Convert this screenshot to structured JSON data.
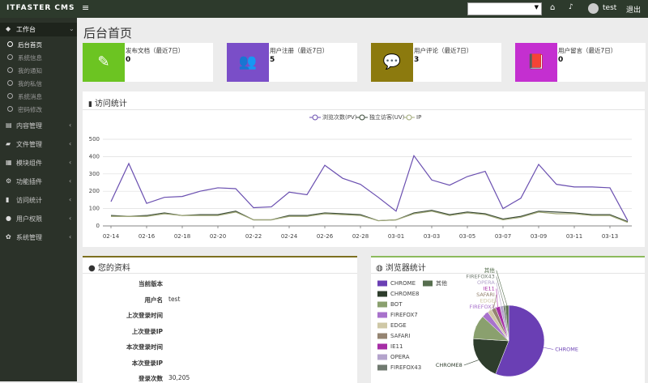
{
  "header": {
    "logo": "ITFASTER CMS",
    "user": "test",
    "logout": "退出"
  },
  "sidebar": {
    "items": [
      {
        "label": "工作台",
        "children": [
          "后台首页",
          "系统信息",
          "我的通知",
          "我的私信",
          "系统消息",
          "密码修改"
        ]
      },
      {
        "label": "内容管理"
      },
      {
        "label": "文件管理"
      },
      {
        "label": "模块组件"
      },
      {
        "label": "功能插件"
      },
      {
        "label": "访问统计"
      },
      {
        "label": "用户权限"
      },
      {
        "label": "系统管理"
      }
    ]
  },
  "page_title": "后台首页",
  "cards": [
    {
      "label": "发布文档（最近7日）",
      "value": "0",
      "color": "#6cc422"
    },
    {
      "label": "用户注册（最近7日）",
      "value": "5",
      "color": "#7a4ec8"
    },
    {
      "label": "用户评论（最近7日）",
      "value": "3",
      "color": "#8c7a0e"
    },
    {
      "label": "用户留言（最近7日）",
      "value": "0",
      "color": "#c42fd0"
    }
  ],
  "chart_data": [
    {
      "type": "line",
      "title": "访问统计",
      "categories": [
        "02-14",
        null,
        "02-16",
        null,
        "02-18",
        null,
        "02-20",
        null,
        "02-22",
        null,
        "02-24",
        null,
        "02-26",
        null,
        "02-28",
        null,
        "03-01",
        null,
        "03-03",
        null,
        "03-05",
        null,
        "03-07",
        null,
        "03-09",
        null,
        "03-11",
        null,
        "03-13",
        null
      ],
      "series": [
        {
          "name": "浏览次数(PV)",
          "color": "#6a4fb0",
          "values": [
            140,
            360,
            130,
            165,
            170,
            200,
            220,
            215,
            105,
            110,
            195,
            180,
            350,
            275,
            240,
            165,
            85,
            405,
            265,
            235,
            285,
            315,
            100,
            160,
            355,
            240,
            225,
            225,
            220,
            30
          ]
        },
        {
          "name": "独立访客(UV)",
          "color": "#3a4a38",
          "values": [
            60,
            55,
            60,
            75,
            60,
            65,
            65,
            85,
            35,
            35,
            60,
            60,
            75,
            70,
            65,
            30,
            35,
            75,
            90,
            65,
            80,
            70,
            40,
            55,
            85,
            80,
            75,
            65,
            65,
            25
          ]
        },
        {
          "name": "IP",
          "color": "#a0a878",
          "values": [
            55,
            55,
            55,
            70,
            60,
            60,
            60,
            80,
            35,
            35,
            55,
            55,
            70,
            65,
            60,
            30,
            35,
            70,
            85,
            60,
            75,
            65,
            35,
            50,
            80,
            70,
            70,
            60,
            60,
            20
          ]
        }
      ],
      "ylim": [
        0,
        500
      ],
      "yticks": [
        0,
        100,
        200,
        300,
        400,
        500
      ],
      "grid": true
    },
    {
      "type": "pie",
      "title": "浏览器统计",
      "categories": [
        "CHROME",
        "CHROME8",
        "BOT",
        "FIREFOX7",
        "EDGE",
        "SAFARI",
        "IE11",
        "OPERA",
        "FIREFOX43",
        "其他"
      ],
      "values": [
        56,
        20,
        11,
        3,
        2,
        2,
        2,
        1.5,
        1,
        1.5
      ],
      "colors": [
        "#6a3fb4",
        "#2e3d2c",
        "#8aa06e",
        "#a872cc",
        "#cfc8a6",
        "#958572",
        "#a62ea6",
        "#b4a4cc",
        "#707a70",
        "#566e4e"
      ]
    }
  ],
  "profile": {
    "title": "您的资料",
    "rows": [
      [
        "当前版本"
      ],
      [
        "用户名",
        "test"
      ],
      [
        "上次登录时间"
      ],
      [
        "上次登录IP"
      ],
      [
        "本次登录时间"
      ],
      [
        "本次登录IP"
      ],
      [
        "登录次数",
        "30,205"
      ]
    ]
  }
}
